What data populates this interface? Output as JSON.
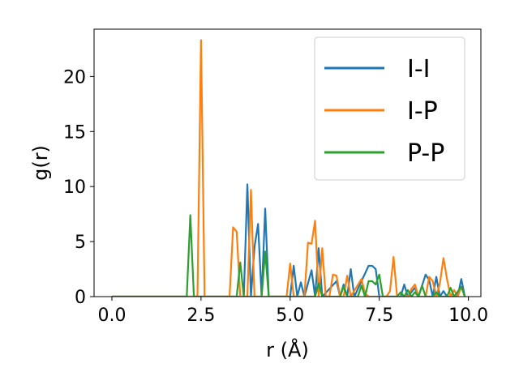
{
  "chart_data": {
    "type": "line",
    "title": "",
    "xlabel": "r (Å)",
    "ylabel": "g(r)",
    "xlim": [
      -0.5,
      10.35
    ],
    "ylim": [
      0,
      24.3
    ],
    "xticks": [
      0.0,
      2.5,
      5.0,
      7.5,
      10.0
    ],
    "xtick_labels": [
      "0.0",
      "2.5",
      "5.0",
      "7.5",
      "10.0"
    ],
    "yticks": [
      0,
      5,
      10,
      15,
      20
    ],
    "ytick_labels": [
      "0",
      "5",
      "10",
      "15",
      "20"
    ],
    "grid": false,
    "legend_position": "top-right",
    "series": [
      {
        "name": "I-I",
        "color": "#1f77b4",
        "points": [
          [
            0,
            0
          ],
          [
            3.6,
            0
          ],
          [
            3.7,
            0
          ],
          [
            3.8,
            10.2
          ],
          [
            3.9,
            0
          ],
          [
            4.0,
            4.5
          ],
          [
            4.1,
            6.6
          ],
          [
            4.2,
            0
          ],
          [
            4.3,
            8.0
          ],
          [
            4.4,
            0
          ],
          [
            5.0,
            0
          ],
          [
            5.1,
            2.8
          ],
          [
            5.2,
            0
          ],
          [
            5.3,
            1.3
          ],
          [
            5.4,
            0
          ],
          [
            5.6,
            2.4
          ],
          [
            5.7,
            0
          ],
          [
            5.8,
            4.4
          ],
          [
            5.9,
            0
          ],
          [
            6.3,
            1.4
          ],
          [
            6.4,
            0
          ],
          [
            6.5,
            1.1
          ],
          [
            6.6,
            0
          ],
          [
            6.7,
            2.5
          ],
          [
            6.8,
            0
          ],
          [
            7.2,
            2.8
          ],
          [
            7.3,
            2.8
          ],
          [
            7.4,
            2.5
          ],
          [
            7.5,
            0
          ],
          [
            7.6,
            0
          ],
          [
            8.1,
            0
          ],
          [
            8.2,
            1.1
          ],
          [
            8.3,
            0
          ],
          [
            8.5,
            0.8
          ],
          [
            8.6,
            0
          ],
          [
            8.7,
            1.0
          ],
          [
            8.8,
            2.0
          ],
          [
            8.9,
            1.5
          ],
          [
            9.0,
            0
          ],
          [
            9.1,
            1.8
          ],
          [
            9.2,
            0
          ],
          [
            9.3,
            0.5
          ],
          [
            9.4,
            0
          ],
          [
            9.7,
            0
          ],
          [
            9.8,
            1.6
          ],
          [
            9.9,
            0
          ]
        ]
      },
      {
        "name": "I-P",
        "color": "#ff7f0e",
        "points": [
          [
            0,
            0
          ],
          [
            2.4,
            0
          ],
          [
            2.5,
            23.3
          ],
          [
            2.6,
            0
          ],
          [
            3.3,
            0
          ],
          [
            3.4,
            6.3
          ],
          [
            3.5,
            5.9
          ],
          [
            3.6,
            0
          ],
          [
            3.8,
            0
          ],
          [
            3.9,
            9.7
          ],
          [
            4.0,
            0
          ],
          [
            4.9,
            0
          ],
          [
            5.0,
            3.0
          ],
          [
            5.1,
            0
          ],
          [
            5.4,
            0
          ],
          [
            5.5,
            4.9
          ],
          [
            5.6,
            4.8
          ],
          [
            5.7,
            6.9
          ],
          [
            5.8,
            0
          ],
          [
            5.9,
            4.4
          ],
          [
            6.0,
            0
          ],
          [
            6.1,
            0
          ],
          [
            6.2,
            2.0
          ],
          [
            6.3,
            1.9
          ],
          [
            6.4,
            0
          ],
          [
            6.5,
            0
          ],
          [
            6.6,
            1.9
          ],
          [
            6.7,
            0
          ],
          [
            7.0,
            1.6
          ],
          [
            7.1,
            0.3
          ],
          [
            7.2,
            0
          ],
          [
            7.7,
            0
          ],
          [
            7.8,
            0.5
          ],
          [
            7.9,
            3.6
          ],
          [
            8.0,
            0
          ],
          [
            8.3,
            0
          ],
          [
            8.4,
            0.7
          ],
          [
            8.5,
            1.1
          ],
          [
            8.6,
            0
          ],
          [
            8.8,
            0
          ],
          [
            8.9,
            1.8
          ],
          [
            9.0,
            1.4
          ],
          [
            9.1,
            0
          ],
          [
            9.2,
            1.2
          ],
          [
            9.3,
            3.5
          ],
          [
            9.4,
            1.6
          ],
          [
            9.5,
            0
          ],
          [
            9.6,
            0.6
          ],
          [
            9.7,
            0
          ],
          [
            9.8,
            0.9
          ],
          [
            9.9,
            0
          ]
        ]
      },
      {
        "name": "P-P",
        "color": "#2ca02c",
        "points": [
          [
            0,
            0
          ],
          [
            2.1,
            0
          ],
          [
            2.2,
            7.4
          ],
          [
            2.3,
            0
          ],
          [
            3.5,
            0
          ],
          [
            3.6,
            3.1
          ],
          [
            3.7,
            0
          ],
          [
            4.2,
            0
          ],
          [
            4.3,
            4.1
          ],
          [
            4.4,
            0
          ],
          [
            5.7,
            0
          ],
          [
            5.8,
            1.2
          ],
          [
            5.9,
            0
          ],
          [
            6.4,
            0
          ],
          [
            6.5,
            0.9
          ],
          [
            6.6,
            0
          ],
          [
            6.9,
            0
          ],
          [
            7.0,
            1.0
          ],
          [
            7.1,
            0
          ],
          [
            7.2,
            1.4
          ],
          [
            7.3,
            1.4
          ],
          [
            7.4,
            1.1
          ],
          [
            7.5,
            2.0
          ],
          [
            7.6,
            0
          ],
          [
            8.0,
            0
          ],
          [
            8.1,
            0.4
          ],
          [
            8.2,
            0
          ],
          [
            8.3,
            0.6
          ],
          [
            8.4,
            0
          ],
          [
            8.5,
            0.4
          ],
          [
            8.6,
            0
          ],
          [
            8.7,
            1.0
          ],
          [
            8.8,
            0
          ],
          [
            9.0,
            0
          ],
          [
            9.1,
            0.4
          ],
          [
            9.2,
            0
          ],
          [
            9.4,
            0
          ],
          [
            9.5,
            0.8
          ],
          [
            9.6,
            0
          ],
          [
            9.8,
            0.9
          ],
          [
            9.9,
            0
          ]
        ]
      }
    ]
  }
}
